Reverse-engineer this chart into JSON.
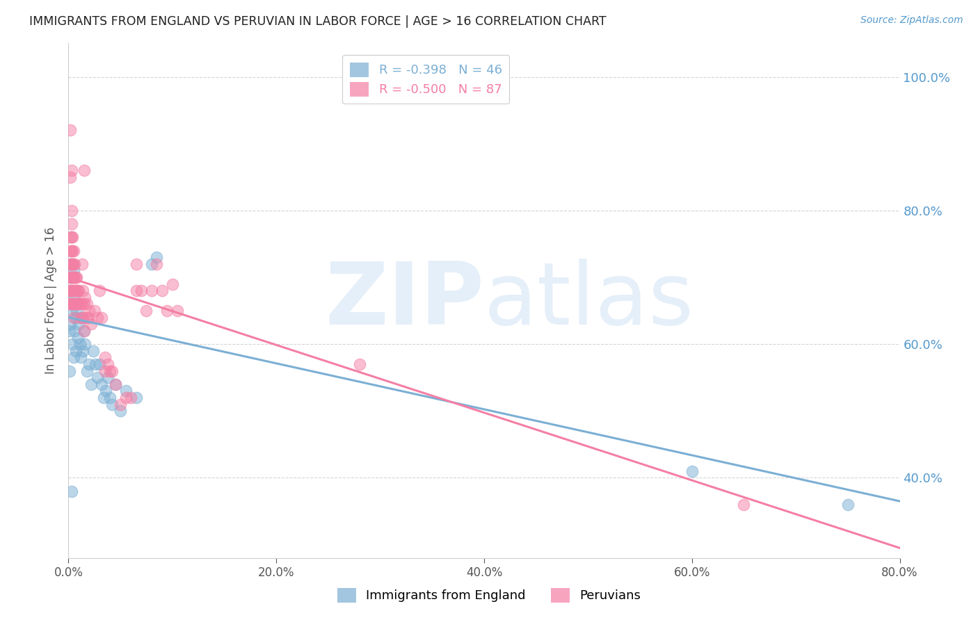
{
  "title": "IMMIGRANTS FROM ENGLAND VS PERUVIAN IN LABOR FORCE | AGE > 16 CORRELATION CHART",
  "source_text": "Source: ZipAtlas.com",
  "ylabel": "In Labor Force | Age > 16",
  "xlim": [
    0.0,
    0.8
  ],
  "ylim": [
    0.28,
    1.05
  ],
  "england_R": -0.398,
  "england_N": 46,
  "peruvian_R": -0.5,
  "peruvian_N": 87,
  "england_color": "#7BAFD4",
  "peruvian_color": "#F47FA4",
  "england_scatter": [
    [
      0.001,
      0.62
    ],
    [
      0.001,
      0.56
    ],
    [
      0.002,
      0.68
    ],
    [
      0.002,
      0.63
    ],
    [
      0.003,
      0.72
    ],
    [
      0.003,
      0.65
    ],
    [
      0.004,
      0.7
    ],
    [
      0.004,
      0.6
    ],
    [
      0.005,
      0.71
    ],
    [
      0.005,
      0.66
    ],
    [
      0.005,
      0.58
    ],
    [
      0.006,
      0.67
    ],
    [
      0.006,
      0.62
    ],
    [
      0.007,
      0.64
    ],
    [
      0.007,
      0.59
    ],
    [
      0.008,
      0.65
    ],
    [
      0.009,
      0.61
    ],
    [
      0.01,
      0.63
    ],
    [
      0.011,
      0.6
    ],
    [
      0.012,
      0.58
    ],
    [
      0.013,
      0.64
    ],
    [
      0.014,
      0.59
    ],
    [
      0.015,
      0.62
    ],
    [
      0.016,
      0.6
    ],
    [
      0.018,
      0.56
    ],
    [
      0.02,
      0.57
    ],
    [
      0.022,
      0.54
    ],
    [
      0.024,
      0.59
    ],
    [
      0.026,
      0.57
    ],
    [
      0.028,
      0.55
    ],
    [
      0.03,
      0.57
    ],
    [
      0.032,
      0.54
    ],
    [
      0.034,
      0.52
    ],
    [
      0.036,
      0.53
    ],
    [
      0.038,
      0.55
    ],
    [
      0.04,
      0.52
    ],
    [
      0.042,
      0.51
    ],
    [
      0.045,
      0.54
    ],
    [
      0.05,
      0.5
    ],
    [
      0.055,
      0.53
    ],
    [
      0.065,
      0.52
    ],
    [
      0.08,
      0.72
    ],
    [
      0.085,
      0.73
    ],
    [
      0.6,
      0.41
    ],
    [
      0.75,
      0.36
    ],
    [
      0.003,
      0.38
    ]
  ],
  "peruvian_scatter": [
    [
      0.001,
      0.72
    ],
    [
      0.001,
      0.7
    ],
    [
      0.001,
      0.68
    ],
    [
      0.001,
      0.66
    ],
    [
      0.002,
      0.76
    ],
    [
      0.002,
      0.74
    ],
    [
      0.002,
      0.72
    ],
    [
      0.002,
      0.7
    ],
    [
      0.002,
      0.68
    ],
    [
      0.002,
      0.66
    ],
    [
      0.002,
      0.92
    ],
    [
      0.003,
      0.8
    ],
    [
      0.003,
      0.78
    ],
    [
      0.003,
      0.76
    ],
    [
      0.003,
      0.74
    ],
    [
      0.003,
      0.72
    ],
    [
      0.003,
      0.7
    ],
    [
      0.003,
      0.68
    ],
    [
      0.003,
      0.66
    ],
    [
      0.004,
      0.76
    ],
    [
      0.004,
      0.74
    ],
    [
      0.004,
      0.72
    ],
    [
      0.004,
      0.7
    ],
    [
      0.004,
      0.68
    ],
    [
      0.004,
      0.66
    ],
    [
      0.005,
      0.74
    ],
    [
      0.005,
      0.72
    ],
    [
      0.005,
      0.7
    ],
    [
      0.005,
      0.68
    ],
    [
      0.005,
      0.66
    ],
    [
      0.005,
      0.64
    ],
    [
      0.006,
      0.72
    ],
    [
      0.006,
      0.7
    ],
    [
      0.006,
      0.68
    ],
    [
      0.006,
      0.66
    ],
    [
      0.007,
      0.7
    ],
    [
      0.007,
      0.68
    ],
    [
      0.007,
      0.66
    ],
    [
      0.008,
      0.7
    ],
    [
      0.008,
      0.68
    ],
    [
      0.008,
      0.66
    ],
    [
      0.009,
      0.68
    ],
    [
      0.009,
      0.66
    ],
    [
      0.01,
      0.68
    ],
    [
      0.01,
      0.66
    ],
    [
      0.011,
      0.66
    ],
    [
      0.012,
      0.64
    ],
    [
      0.013,
      0.72
    ],
    [
      0.013,
      0.66
    ],
    [
      0.014,
      0.68
    ],
    [
      0.014,
      0.64
    ],
    [
      0.015,
      0.66
    ],
    [
      0.015,
      0.62
    ],
    [
      0.016,
      0.67
    ],
    [
      0.017,
      0.64
    ],
    [
      0.018,
      0.66
    ],
    [
      0.019,
      0.64
    ],
    [
      0.02,
      0.65
    ],
    [
      0.022,
      0.63
    ],
    [
      0.025,
      0.65
    ],
    [
      0.028,
      0.64
    ],
    [
      0.03,
      0.68
    ],
    [
      0.032,
      0.64
    ],
    [
      0.035,
      0.56
    ],
    [
      0.038,
      0.57
    ],
    [
      0.04,
      0.56
    ],
    [
      0.042,
      0.56
    ],
    [
      0.045,
      0.54
    ],
    [
      0.05,
      0.51
    ],
    [
      0.055,
      0.52
    ],
    [
      0.06,
      0.52
    ],
    [
      0.065,
      0.68
    ],
    [
      0.065,
      0.72
    ],
    [
      0.07,
      0.68
    ],
    [
      0.075,
      0.65
    ],
    [
      0.08,
      0.68
    ],
    [
      0.085,
      0.72
    ],
    [
      0.09,
      0.68
    ],
    [
      0.095,
      0.65
    ],
    [
      0.1,
      0.69
    ],
    [
      0.105,
      0.65
    ],
    [
      0.28,
      0.57
    ],
    [
      0.65,
      0.36
    ],
    [
      0.002,
      0.85
    ],
    [
      0.003,
      0.86
    ],
    [
      0.015,
      0.86
    ],
    [
      0.035,
      0.58
    ]
  ],
  "england_line_x": [
    0.0,
    0.8
  ],
  "england_line_y": [
    0.64,
    0.365
  ],
  "peruvian_line_x": [
    0.0,
    0.8
  ],
  "peruvian_line_y": [
    0.7,
    0.295
  ],
  "watermark_zip": "ZIP",
  "watermark_atlas": "atlas",
  "watermark_color": "#aaccee",
  "watermark_alpha": 0.3,
  "background_color": "#ffffff",
  "grid_color": "#cccccc",
  "title_color": "#222222",
  "right_axis_color": "#5599cc",
  "legend_england_label": "Immigrants from England",
  "legend_peruvian_label": "Peruvians",
  "yticks": [
    0.4,
    0.6,
    0.8,
    1.0
  ],
  "xticks": [
    0.0,
    0.2,
    0.4,
    0.6,
    0.8
  ]
}
